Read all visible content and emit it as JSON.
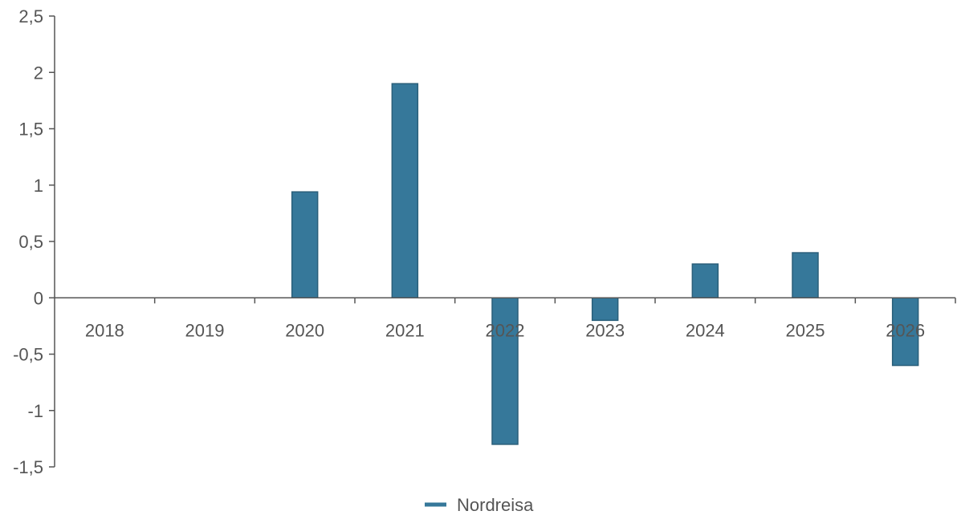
{
  "chart_data": {
    "type": "bar",
    "categories": [
      "2018",
      "2019",
      "2020",
      "2021",
      "2022",
      "2023",
      "2024",
      "2025",
      "2026"
    ],
    "series": [
      {
        "name": "Nordreisa",
        "values": [
          0,
          0,
          0.94,
          1.9,
          -1.3,
          -0.2,
          0.3,
          0.4,
          -0.6
        ],
        "color": "#36789a"
      }
    ],
    "ylim": [
      -1.5,
      2.5
    ],
    "yticks": [
      2.5,
      2,
      1.5,
      1,
      0.5,
      0,
      -0.5,
      -1,
      -1.5
    ],
    "ytick_labels": [
      "2,5",
      "2",
      "1,5",
      "1",
      "0,5",
      "0",
      "-0,5",
      "-1",
      "-1,5"
    ],
    "grid": false,
    "legend_position": "bottom-center",
    "bar_edge_color": "#2a5f7a"
  }
}
